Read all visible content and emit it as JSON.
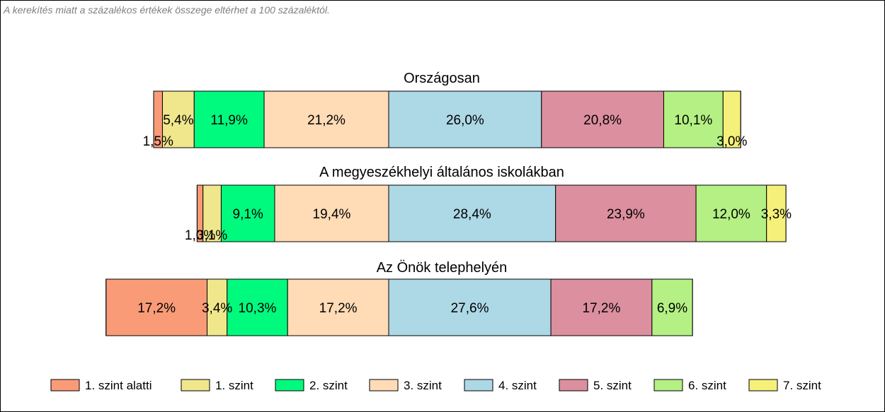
{
  "note": "A kerekítés miatt a  százalékos értékek összege eltérhet a 100 százaléktól.",
  "chart_data": {
    "type": "bar",
    "orientation": "horizontal-stacked-100",
    "categories": [
      "1. szint alatti",
      "1. szint",
      "2. szint",
      "3. szint",
      "4. szint",
      "5. szint",
      "6. szint",
      "7. szint"
    ],
    "colors": [
      "#fa9b78",
      "#f0e68c",
      "#00fa7e",
      "#ffdbb6",
      "#add8e6",
      "#dc8f9f",
      "#b4f083",
      "#f5f07a"
    ],
    "legend_position": "bottom",
    "rows": [
      {
        "title": "Országosan",
        "values": [
          1.5,
          5.4,
          11.9,
          21.2,
          26.0,
          20.8,
          10.1,
          3.0
        ],
        "labels": [
          "1,5%",
          "5,4%",
          "11,9%",
          "21,2%",
          "26,0%",
          "20,8%",
          "10,1%",
          "3,0%"
        ]
      },
      {
        "title": "A megyeszékhelyi általános iskolákban",
        "values": [
          1.0,
          3.1,
          9.1,
          19.4,
          28.4,
          23.9,
          12.0,
          3.3
        ],
        "labels": [
          "1,0%",
          "3,1%",
          "9,1%",
          "19,4%",
          "28,4%",
          "23,9%",
          "12,0%",
          "3,3%"
        ]
      },
      {
        "title": "Az Önök telephelyén",
        "values": [
          17.2,
          3.4,
          10.3,
          17.2,
          27.6,
          17.2,
          6.9,
          0
        ],
        "labels": [
          "17,2%",
          "3,4%",
          "10,3%",
          "17,2%",
          "27,6%",
          "17,2%",
          "6,9%",
          ""
        ]
      }
    ]
  }
}
